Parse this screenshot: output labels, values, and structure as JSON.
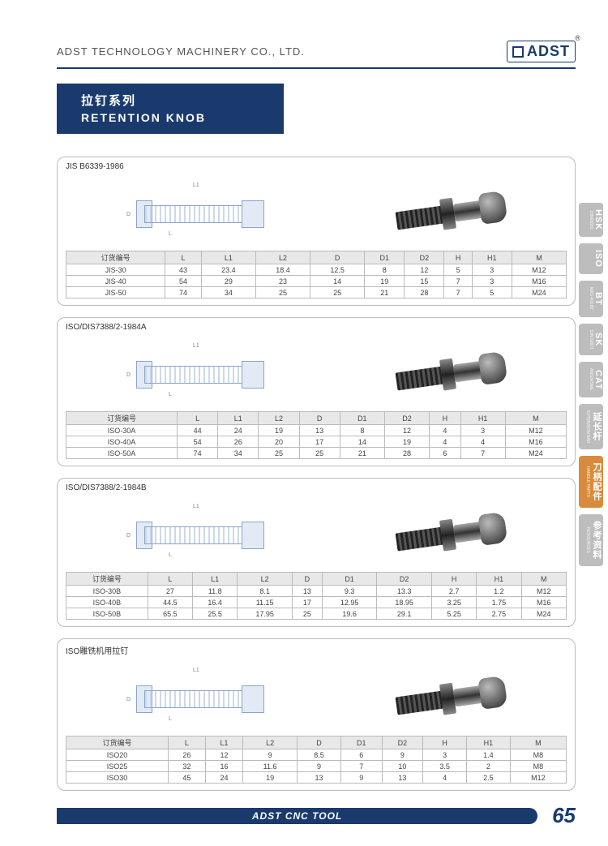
{
  "header": {
    "company_name": "ADST TECHNOLOGY MACHINERY CO., LTD.",
    "logo_text": "ADST",
    "reg_mark": "®"
  },
  "title": {
    "cn": "拉钉系列",
    "en": "RETENTION KNOB"
  },
  "columns": [
    "订货编号",
    "L",
    "L1",
    "L2",
    "D",
    "D1",
    "D2",
    "H",
    "H1",
    "M"
  ],
  "sections": [
    {
      "title": "JIS B6339-1986",
      "rows": [
        [
          "JIS-30",
          "43",
          "23.4",
          "18.4",
          "12.5",
          "8",
          "12",
          "5",
          "3",
          "M12"
        ],
        [
          "JIS-40",
          "54",
          "29",
          "23",
          "14",
          "19",
          "15",
          "7",
          "3",
          "M16"
        ],
        [
          "JIS-50",
          "74",
          "34",
          "25",
          "25",
          "21",
          "28",
          "7",
          "5",
          "M24"
        ]
      ]
    },
    {
      "title": "ISO/DIS7388/2-1984A",
      "rows": [
        [
          "ISO-30A",
          "44",
          "24",
          "19",
          "13",
          "8",
          "12",
          "4",
          "3",
          "M12"
        ],
        [
          "ISO-40A",
          "54",
          "26",
          "20",
          "17",
          "14",
          "19",
          "4",
          "4",
          "M16"
        ],
        [
          "ISO-50A",
          "74",
          "34",
          "25",
          "25",
          "21",
          "28",
          "6",
          "7",
          "M24"
        ]
      ]
    },
    {
      "title": "ISO/DIS7388/2-1984B",
      "rows": [
        [
          "ISO-30B",
          "27",
          "11.8",
          "8.1",
          "13",
          "9.3",
          "13.3",
          "2.7",
          "1.2",
          "M12"
        ],
        [
          "ISO-40B",
          "44.5",
          "16.4",
          "11.15",
          "17",
          "12.95",
          "18.95",
          "3.25",
          "1.75",
          "M16"
        ],
        [
          "ISO-50B",
          "65.5",
          "25.5",
          "17.95",
          "25",
          "19.6",
          "29.1",
          "5.25",
          "2.75",
          "M24"
        ]
      ]
    },
    {
      "title": "ISO雕铣机用拉钉",
      "rows": [
        [
          "ISO20",
          "26",
          "12",
          "9",
          "8.5",
          "6",
          "9",
          "3",
          "1.4",
          "M8"
        ],
        [
          "ISO25",
          "32",
          "16",
          "11.6",
          "9",
          "7",
          "10",
          "3.5",
          "2",
          "M8"
        ],
        [
          "ISO30",
          "45",
          "24",
          "19",
          "13",
          "9",
          "13",
          "4",
          "2.5",
          "M12"
        ]
      ]
    }
  ],
  "tabs": [
    {
      "big": "HSK",
      "small": "DIN69893",
      "active": false
    },
    {
      "big": "ISO",
      "small": "",
      "active": false
    },
    {
      "big": "BT",
      "small": "MAS 403 BT",
      "active": false
    },
    {
      "big": "SK",
      "small": "DIN 69871",
      "active": false
    },
    {
      "big": "CAT",
      "small": "ANSI/ASME",
      "active": false
    },
    {
      "big": "延长杆",
      "small": "EXTENSION BAR",
      "active": false
    },
    {
      "big": "刀柄配件",
      "small": "HANDLE PARTS",
      "active": true
    },
    {
      "big": "参考资料",
      "small": "RESOURCES",
      "active": false
    }
  ],
  "footer": {
    "bar_text": "ADST CNC TOOL",
    "page_number": "65"
  },
  "colors": {
    "brand_navy": "#1a3a6e",
    "tab_gray": "#bdbdbd",
    "tab_active": "#d98b3d",
    "table_header_bg": "#e8e8e8",
    "border": "#bbbbbb"
  }
}
